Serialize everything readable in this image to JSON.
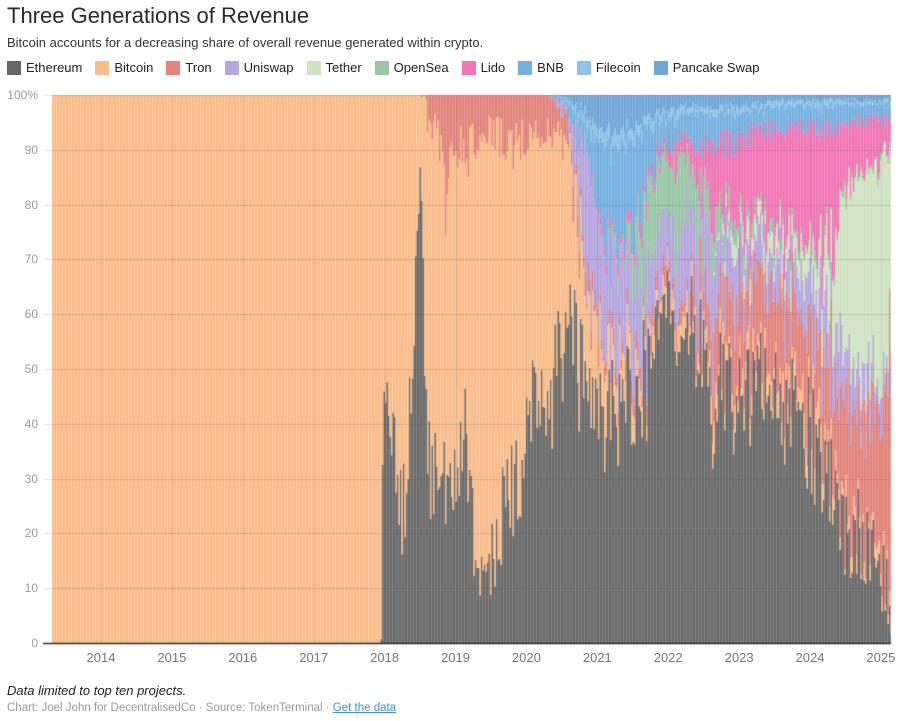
{
  "header": {
    "title": "Three Generations of Revenue",
    "subtitle": "Bitcoin accounts for a decreasing share of overall revenue generated within crypto."
  },
  "legend": {
    "items": [
      {
        "label": "Ethereum",
        "color": "#666666"
      },
      {
        "label": "Bitcoin",
        "color": "#f9bd8a"
      },
      {
        "label": "Tron",
        "color": "#e3837d"
      },
      {
        "label": "Uniswap",
        "color": "#b6a5df"
      },
      {
        "label": "Tether",
        "color": "#d0e4c2"
      },
      {
        "label": "OpenSea",
        "color": "#98c8a6"
      },
      {
        "label": "Lido",
        "color": "#f175b5"
      },
      {
        "label": "BNB",
        "color": "#74b0e0"
      },
      {
        "label": "Filecoin",
        "color": "#8ec3e8"
      },
      {
        "label": "Pancake Swap",
        "color": "#6fa6d6"
      }
    ]
  },
  "footer": {
    "note": "Data limited to top ten projects.",
    "credit": "Chart: Joel John for DecentralisedCo · Source: TokenTerminal · ",
    "link": "Get the data"
  },
  "chart_data": {
    "type": "area",
    "stacked": true,
    "unit": "percent share of total crypto revenue",
    "ylim": [
      0,
      100
    ],
    "xlim": [
      2013.3,
      2025.13
    ],
    "grid": true,
    "legend_position": "top",
    "y_ticks": {
      "values": [
        100,
        90,
        80,
        70,
        60,
        50,
        40,
        30,
        20,
        10,
        0
      ],
      "labels": [
        "100%",
        "90",
        "80",
        "70",
        "60",
        "50",
        "40",
        "30",
        "20",
        "10",
        "0"
      ]
    },
    "x_ticks": [
      2014,
      2015,
      2016,
      2017,
      2018,
      2019,
      2020,
      2021,
      2022,
      2023,
      2024,
      2025
    ],
    "series": [
      {
        "name": "Ethereum",
        "color": "#6b6b6b",
        "jitter": 2.3
      },
      {
        "name": "Bitcoin",
        "color": "#f9bd8a",
        "jitter": 1.0
      },
      {
        "name": "Tron",
        "color": "#e3837d",
        "jitter": 1.5
      },
      {
        "name": "Uniswap",
        "color": "#b6a5df",
        "jitter": 1.6
      },
      {
        "name": "Tether",
        "color": "#d0e4c2",
        "jitter": 1.0
      },
      {
        "name": "OpenSea",
        "color": "#98c8a6",
        "jitter": 1.1
      },
      {
        "name": "Lido",
        "color": "#f175b5",
        "jitter": 1.1
      },
      {
        "name": "BNB",
        "color": "#74b0e0",
        "jitter": 0.8
      },
      {
        "name": "Filecoin",
        "color": "#8ec3e8",
        "jitter": 0.4
      },
      {
        "name": "Pancake Swap",
        "color": "#6fa6d6",
        "jitter": 0.5
      }
    ],
    "keyframes": {
      "t": [
        2013.3,
        2017.94,
        2017.97,
        2018.05,
        2018.15,
        2018.25,
        2018.35,
        2018.45,
        2018.5,
        2018.56,
        2018.65,
        2018.75,
        2018.85,
        2018.95,
        2019.05,
        2019.15,
        2019.25,
        2019.4,
        2019.55,
        2019.7,
        2019.85,
        2020.0,
        2020.15,
        2020.3,
        2020.45,
        2020.6,
        2020.7,
        2020.8,
        2020.95,
        2021.1,
        2021.25,
        2021.4,
        2021.55,
        2021.7,
        2021.85,
        2022.0,
        2022.15,
        2022.3,
        2022.45,
        2022.6,
        2022.75,
        2022.9,
        2023.05,
        2023.25,
        2023.45,
        2023.65,
        2023.85,
        2024.05,
        2024.2,
        2024.35,
        2024.45,
        2024.6,
        2024.75,
        2024.9,
        2025.0,
        2025.08,
        2025.13
      ],
      "v": [
        [
          0,
          100,
          0,
          0,
          0,
          0,
          0,
          0,
          0,
          0
        ],
        [
          0,
          100,
          0,
          0,
          0,
          0,
          0,
          0,
          0,
          0
        ],
        [
          40,
          60,
          0,
          0,
          0,
          0,
          0,
          0,
          0,
          0
        ],
        [
          46,
          54,
          0,
          0,
          0,
          0,
          0,
          0,
          0,
          0
        ],
        [
          30,
          70,
          0,
          0,
          0,
          0,
          0,
          0,
          0,
          0
        ],
        [
          24,
          76,
          0,
          0,
          0,
          0,
          0,
          0,
          0,
          0
        ],
        [
          42,
          58,
          0,
          0,
          0,
          0,
          0,
          0,
          0,
          0
        ],
        [
          72,
          28,
          0,
          0,
          0,
          0,
          0,
          0,
          0,
          0
        ],
        [
          86,
          14,
          0,
          0,
          0,
          0,
          0,
          0,
          0,
          0
        ],
        [
          44,
          55,
          1,
          0,
          0,
          0,
          0,
          0,
          0,
          0
        ],
        [
          30,
          64,
          6,
          0,
          0,
          0,
          0,
          0,
          0,
          0
        ],
        [
          26,
          66,
          8,
          0,
          0,
          0,
          0,
          0,
          0,
          0
        ],
        [
          27,
          53,
          20,
          0,
          0,
          0,
          0,
          0,
          0,
          0
        ],
        [
          30,
          61,
          9,
          0,
          0,
          0,
          0,
          0,
          0,
          0
        ],
        [
          36,
          54,
          10,
          0,
          0,
          0,
          0,
          0,
          0,
          0
        ],
        [
          38,
          51,
          11,
          0,
          0,
          0,
          0,
          0,
          0,
          0
        ],
        [
          22,
          70,
          8,
          0,
          0,
          0,
          0,
          0,
          0,
          0
        ],
        [
          11,
          82,
          7,
          0,
          0,
          0,
          0,
          0,
          0,
          0
        ],
        [
          16,
          77,
          7,
          0,
          0,
          0,
          0,
          0,
          0,
          0
        ],
        [
          30,
          61,
          9,
          0,
          0,
          0,
          0,
          0,
          0,
          0
        ],
        [
          27,
          65,
          8,
          0,
          0,
          0,
          0,
          0,
          0,
          0
        ],
        [
          38,
          54,
          8,
          0,
          0,
          0,
          0,
          0,
          0,
          0
        ],
        [
          50,
          43,
          7,
          0,
          0,
          0,
          0,
          0,
          0,
          0
        ],
        [
          44,
          50,
          6,
          0,
          0,
          0,
          0,
          0,
          0,
          0
        ],
        [
          52,
          41,
          5,
          1,
          0,
          0,
          0,
          1,
          0,
          0
        ],
        [
          58,
          31,
          4,
          3,
          0,
          0,
          0,
          2,
          1,
          1
        ],
        [
          54,
          25,
          3,
          11,
          0,
          0,
          0,
          4,
          1,
          2
        ],
        [
          48,
          18,
          3,
          22,
          0,
          0,
          0,
          5,
          1.5,
          2.5
        ],
        [
          44,
          14,
          3,
          21,
          0,
          0,
          0.5,
          10,
          2,
          5.5
        ],
        [
          41,
          11,
          2.5,
          19,
          0,
          0.5,
          1,
          16,
          2.5,
          6.5
        ],
        [
          41,
          8,
          2,
          19,
          0,
          1,
          1,
          17,
          2.5,
          7
        ],
        [
          46,
          6,
          2,
          16,
          0,
          3,
          1,
          15,
          2,
          6
        ],
        [
          42,
          5,
          2,
          14,
          0,
          9,
          1.5,
          15,
          2,
          6
        ],
        [
          48,
          4,
          2,
          12,
          0,
          15,
          2,
          9,
          1.5,
          4
        ],
        [
          63,
          3,
          2,
          9,
          0,
          11,
          2,
          6,
          1.5,
          3
        ],
        [
          60,
          3,
          3,
          10,
          0,
          11,
          3,
          5,
          1.5,
          3
        ],
        [
          54,
          3,
          3,
          12,
          0,
          12,
          3.5,
          5,
          1.5,
          2.5
        ],
        [
          54,
          3,
          4,
          12,
          0,
          9,
          5,
          5,
          1,
          2
        ],
        [
          50,
          3,
          6,
          12,
          0,
          7,
          7,
          5,
          1,
          2
        ],
        [
          38,
          3,
          9,
          13,
          0,
          5,
          10,
          5,
          1,
          2
        ],
        [
          44,
          3,
          10,
          10,
          1,
          4,
          12,
          5,
          1,
          2
        ],
        [
          44,
          3,
          12,
          8,
          2,
          3,
          13,
          5,
          1,
          2
        ],
        [
          45,
          3,
          13,
          8,
          3,
          2,
          14,
          4,
          1,
          2
        ],
        [
          47,
          3,
          14,
          7,
          3,
          2,
          15,
          4,
          1,
          1.5
        ],
        [
          44,
          3,
          16,
          6,
          4,
          1.5,
          17,
          4,
          1,
          1.5
        ],
        [
          41,
          3.5,
          16,
          6,
          5,
          1,
          19,
          4,
          1,
          1
        ],
        [
          39,
          4,
          15,
          7,
          5,
          1,
          20,
          4,
          1,
          1
        ],
        [
          35,
          5,
          14,
          9,
          6,
          1,
          22,
          4,
          1,
          1
        ],
        [
          29,
          4,
          16,
          11,
          8,
          1,
          22,
          4,
          1,
          1
        ],
        [
          26,
          3,
          18,
          9,
          14,
          1,
          18,
          4,
          1,
          1
        ],
        [
          22,
          2.5,
          22,
          8,
          26,
          1,
          11,
          4,
          0.5,
          1
        ],
        [
          17,
          2,
          24,
          8,
          33,
          0.5,
          9,
          3,
          0.5,
          1
        ],
        [
          19,
          2,
          22,
          7,
          35,
          0.5,
          8,
          3,
          0.5,
          1
        ],
        [
          18,
          2,
          23,
          6,
          36,
          0.5,
          8,
          3,
          0.5,
          1
        ],
        [
          14,
          2,
          27,
          5,
          37,
          0.5,
          7,
          3,
          0.5,
          1
        ],
        [
          8,
          2,
          40,
          3,
          33,
          0.5,
          6,
          3,
          0.5,
          1
        ],
        [
          5,
          2,
          50,
          2,
          28,
          0.5,
          5,
          3,
          0.5,
          1
        ]
      ]
    }
  }
}
